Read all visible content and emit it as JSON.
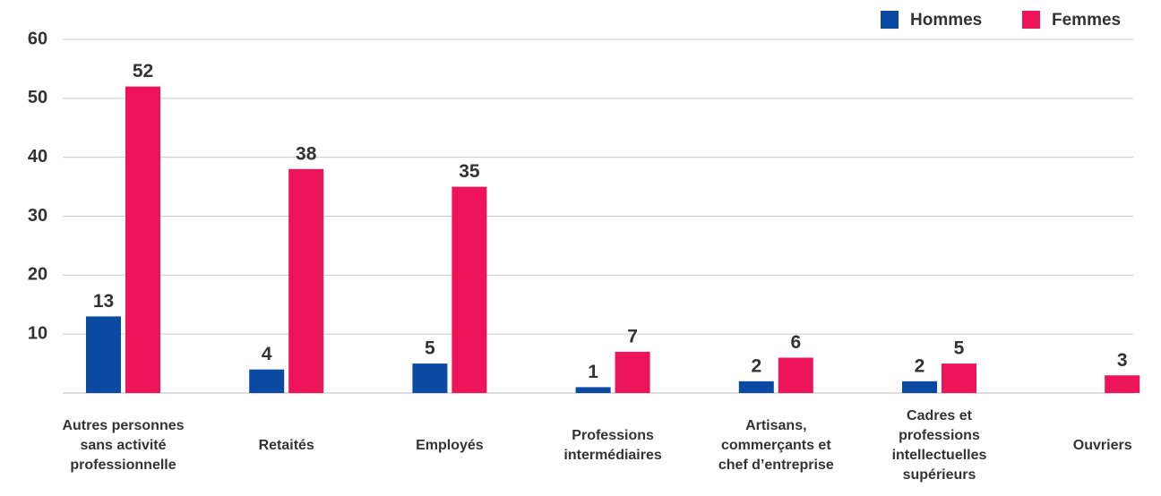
{
  "chart_data": {
    "type": "bar",
    "categories": [
      [
        "Autres personnes",
        "sans activité",
        "professionnelle"
      ],
      [
        "Retaités"
      ],
      [
        "Employés"
      ],
      [
        "Professions",
        "intermédiaires"
      ],
      [
        "Artisans,",
        "commerçants et",
        "chef d’entreprise"
      ],
      [
        "Cadres et",
        "professions",
        "intellectuelles",
        "supérieurs"
      ],
      [
        "Ouvriers"
      ]
    ],
    "series": [
      {
        "name": "Hommes",
        "color": "#0b4aa2",
        "values": [
          13,
          4,
          5,
          1,
          2,
          2,
          null
        ]
      },
      {
        "name": "Femmes",
        "color": "#ee1459",
        "values": [
          52,
          38,
          35,
          7,
          6,
          5,
          3
        ]
      }
    ],
    "ylim": [
      0,
      60
    ],
    "yticks": [
      10,
      20,
      30,
      40,
      50,
      60
    ],
    "grid": true,
    "legend": "top-right"
  }
}
